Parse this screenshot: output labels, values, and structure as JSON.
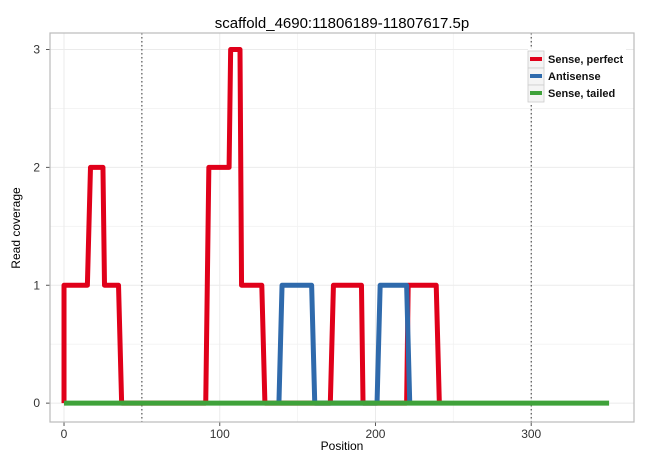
{
  "chart_data": {
    "type": "line",
    "title": "scaffold_4690:11806189-11807617.5p",
    "xlabel": "Position",
    "ylabel": "Read coverage",
    "xlim": [
      -9,
      366
    ],
    "ylim": [
      -0.16,
      3.14
    ],
    "xticks": [
      0,
      100,
      200,
      300
    ],
    "yticks": [
      0,
      1,
      2,
      3
    ],
    "grid": true,
    "vlines": [
      50,
      300
    ],
    "legend_position": "top-right",
    "series": [
      {
        "name": "Sense, perfect",
        "color": "#e0001a",
        "x": [
          0,
          0,
          15,
          17,
          25,
          26,
          35,
          37,
          91,
          93,
          106,
          107,
          113,
          114,
          127,
          129,
          171,
          173,
          191,
          192,
          220,
          221,
          239,
          241
        ],
        "y": [
          0,
          1,
          1,
          2,
          2,
          1,
          1,
          0,
          0,
          2,
          2,
          3,
          3,
          1,
          1,
          0,
          0,
          1,
          1,
          0,
          0,
          1,
          1,
          0
        ]
      },
      {
        "name": "Antisense",
        "color": "#2f6aac",
        "x": [
          138,
          140,
          159,
          161,
          201,
          203,
          220,
          222
        ],
        "y": [
          0,
          1,
          1,
          0,
          0,
          1,
          1,
          0
        ]
      },
      {
        "name": "Sense, tailed",
        "color": "#3fa23a",
        "x": [
          0,
          350
        ],
        "y": [
          0,
          0
        ]
      }
    ]
  }
}
